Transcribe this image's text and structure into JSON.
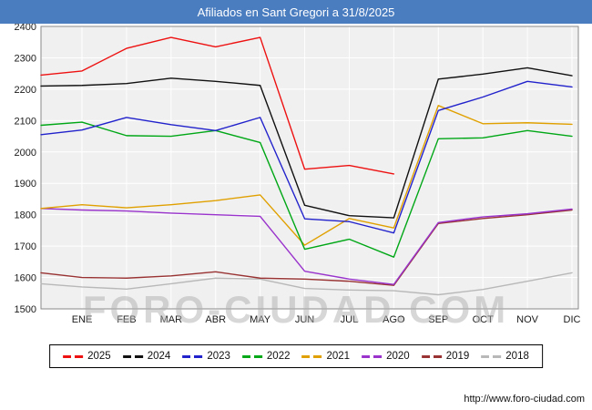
{
  "header": {
    "title": "Afiliados en Sant Gregori a 31/8/2025",
    "bg_color": "#4a7cc0"
  },
  "watermark": "FORO-CIUDAD.COM",
  "footer": {
    "url": "http://www.foro-ciudad.com"
  },
  "chart_data": {
    "type": "line",
    "title": "Afiliados en Sant Gregori a 31/8/2025",
    "categories": [
      "ENE",
      "FEB",
      "MAR",
      "ABR",
      "MAY",
      "JUN",
      "JUL",
      "AGO",
      "SEP",
      "OCT",
      "NOV",
      "DIC"
    ],
    "ylim": [
      1500,
      2400
    ],
    "ytick_step": 100,
    "grid": true,
    "legend_position": "bottom",
    "plot_bg": "#f0f0f0",
    "grid_color": "#ffffff",
    "series": [
      {
        "name": "2025",
        "color": "#ee1111",
        "start": 2245,
        "values": [
          2258,
          2330,
          2365,
          2335,
          2365,
          1945,
          1957,
          1930,
          null,
          null,
          null,
          null
        ]
      },
      {
        "name": "2024",
        "color": "#111111",
        "start": 2210,
        "values": [
          2212,
          2218,
          2235,
          2225,
          2212,
          1830,
          1797,
          1790,
          2232,
          2248,
          2268,
          2243
        ]
      },
      {
        "name": "2023",
        "color": "#2222cc",
        "start": 2055,
        "values": [
          2070,
          2110,
          2087,
          2068,
          2110,
          1787,
          1778,
          1742,
          2132,
          2175,
          2225,
          2207
        ]
      },
      {
        "name": "2022",
        "color": "#00a716",
        "start": 2085,
        "values": [
          2095,
          2052,
          2050,
          2068,
          2030,
          1690,
          1722,
          1665,
          2042,
          2045,
          2068,
          2050
        ]
      },
      {
        "name": "2021",
        "color": "#e0a000",
        "start": 1820,
        "values": [
          1832,
          1822,
          1832,
          1845,
          1863,
          1703,
          1788,
          1758,
          2148,
          2090,
          2093,
          2088
        ]
      },
      {
        "name": "2020",
        "color": "#9933cc",
        "start": 1820,
        "values": [
          1815,
          1812,
          1805,
          1800,
          1795,
          1620,
          1595,
          1578,
          1775,
          1793,
          1803,
          1818
        ]
      },
      {
        "name": "2019",
        "color": "#993333",
        "start": 1615,
        "values": [
          1600,
          1598,
          1605,
          1618,
          1598,
          1595,
          1588,
          1575,
          1772,
          1788,
          1800,
          1815
        ]
      },
      {
        "name": "2018",
        "color": "#b8b8b8",
        "start": 1580,
        "values": [
          1570,
          1563,
          1580,
          1598,
          1595,
          1565,
          1560,
          1558,
          1545,
          1562,
          1588,
          1615
        ]
      }
    ]
  }
}
